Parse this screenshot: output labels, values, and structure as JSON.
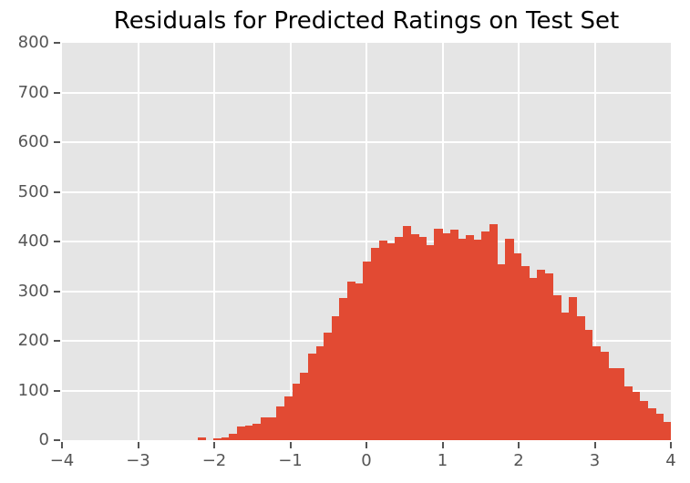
{
  "chart": {
    "title": "Residuals for Predicted Ratings on Test Set"
  },
  "chart_data": {
    "type": "bar",
    "subtype": "histogram",
    "title": "Residuals for Predicted Ratings on Test Set",
    "xlabel": "",
    "ylabel": "",
    "xlim": [
      -4,
      4
    ],
    "ylim": [
      0,
      800
    ],
    "x_tick_values": [
      -4,
      -3,
      -2,
      -1,
      0,
      1,
      2,
      3,
      4
    ],
    "x_tick_labels": [
      "−4",
      "−3",
      "−2",
      "−1",
      "0",
      "1",
      "2",
      "3",
      "4"
    ],
    "y_tick_values": [
      0,
      100,
      200,
      300,
      400,
      500,
      600,
      700,
      800
    ],
    "y_tick_labels": [
      "0",
      "100",
      "200",
      "300",
      "400",
      "500",
      "600",
      "700",
      "800"
    ],
    "grid": true,
    "legend": "none",
    "bin_start": -2.22,
    "bin_width": 0.1037,
    "values": [
      5,
      0,
      4,
      6,
      12,
      27,
      30,
      33,
      45,
      46,
      68,
      89,
      113,
      136,
      175,
      189,
      216,
      249,
      287,
      319,
      315,
      360,
      388,
      401,
      396,
      409,
      432,
      415,
      410,
      393,
      426,
      417,
      423,
      406,
      413,
      403,
      420,
      435,
      355,
      406,
      377,
      351,
      327,
      343,
      336,
      291,
      256,
      288,
      249,
      222,
      189,
      178,
      145,
      145,
      108,
      98,
      79,
      65,
      53,
      37
    ],
    "style": {
      "bar_color": "#E24A33",
      "plot_bg": "#E5E5E5",
      "grid_color": "#FFFFFF",
      "figure_bg": "#FFFFFF",
      "tick_color": "#555555",
      "tick_label_color": "#555555",
      "title_color": "#000000"
    }
  }
}
